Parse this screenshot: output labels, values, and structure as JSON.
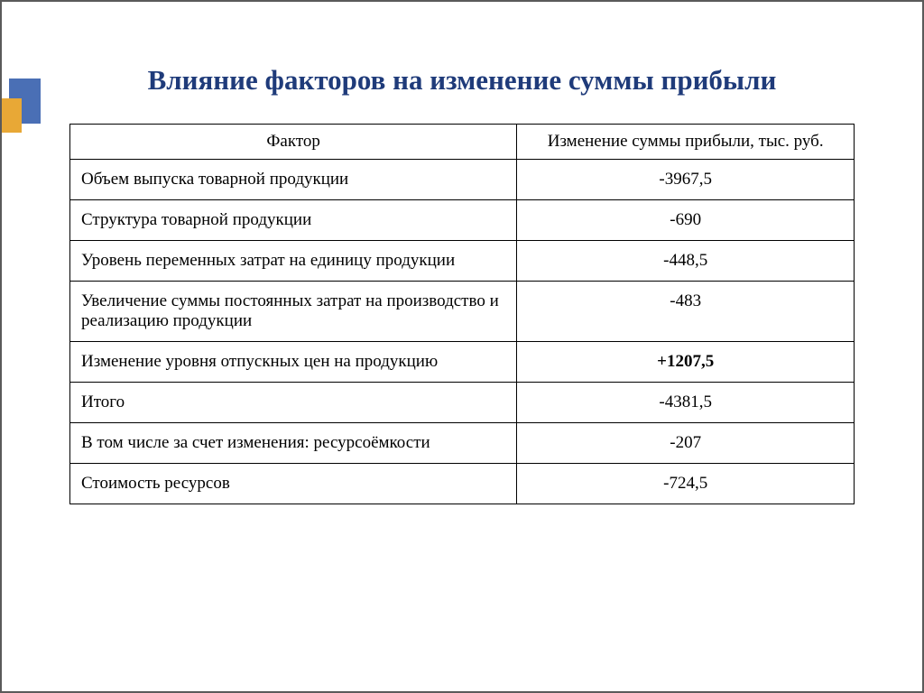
{
  "title": "Влияние факторов на изменение суммы прибыли",
  "table": {
    "columns": [
      "Фактор",
      "Изменение суммы прибыли, тыс. руб."
    ],
    "rows": [
      {
        "factor": "Объем выпуска товарной продукции",
        "value": "-3967,5",
        "bold": false
      },
      {
        "factor": "Структура товарной продукции",
        "value": "-690",
        "bold": false
      },
      {
        "factor": "Уровень переменных затрат на единицу продукции",
        "value": "-448,5",
        "bold": false
      },
      {
        "factor": "Увеличение суммы постоянных затрат на производство и реализацию продукции",
        "value": "-483",
        "bold": false
      },
      {
        "factor": "Изменение уровня  отпускных цен на продукцию",
        "value": "+1207,5",
        "bold": true
      },
      {
        "factor": "Итого",
        "value": "-4381,5",
        "bold": false
      },
      {
        "factor": "В том числе за счет изменения: ресурсоёмкости",
        "value": "-207",
        "bold": false
      },
      {
        "factor": "Стоимость ресурсов",
        "value": "-724,5",
        "bold": false
      }
    ]
  },
  "colors": {
    "title": "#1f3b7a",
    "accent_blue": "#4a6fb5",
    "accent_orange": "#e8a836",
    "border": "#000000",
    "frame": "#5a5a5a",
    "background": "#ffffff"
  },
  "typography": {
    "title_fontsize": 31,
    "title_fontweight": "bold",
    "body_fontsize": 19,
    "font_family": "Times New Roman"
  },
  "layout": {
    "col_widths_pct": [
      57,
      43
    ],
    "header_align": "center",
    "factor_align": "left",
    "value_align": "center"
  }
}
